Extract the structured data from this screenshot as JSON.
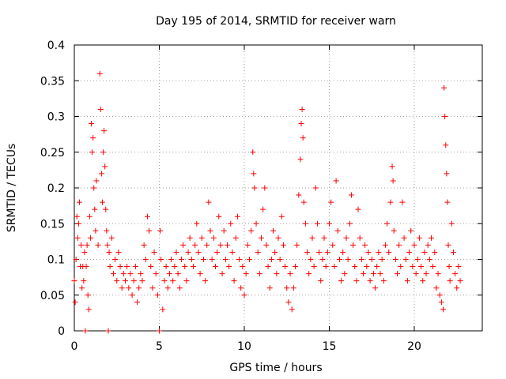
{
  "chart_data": {
    "type": "scatter",
    "title": "Day 195 of 2014, SRMTID for receiver warn",
    "xlabel": "GPS time / hours",
    "ylabel": "SRMTID / TECUs",
    "xlim": [
      0,
      24
    ],
    "ylim": [
      0,
      0.4
    ],
    "xticks": [
      0,
      5,
      10,
      15,
      20
    ],
    "xtick_labels": [
      "0",
      "5",
      "10",
      "15",
      "20"
    ],
    "yticks": [
      0,
      0.05,
      0.1,
      0.15,
      0.2,
      0.25,
      0.3,
      0.35,
      0.4
    ],
    "ytick_labels": [
      "0",
      "0.05",
      "0.1",
      "0.15",
      "0.2",
      "0.25",
      "0.3",
      "0.35",
      "0.4"
    ],
    "grid": true,
    "marker": "+",
    "color": "#ff0000",
    "series": [
      {
        "name": "SRMTID",
        "points": [
          [
            0.0,
            0.07
          ],
          [
            0.05,
            0.04
          ],
          [
            0.1,
            0.1
          ],
          [
            0.15,
            0.16
          ],
          [
            0.2,
            0.13
          ],
          [
            0.25,
            0.15
          ],
          [
            0.3,
            0.18
          ],
          [
            0.35,
            0.09
          ],
          [
            0.4,
            0.12
          ],
          [
            0.45,
            0.06
          ],
          [
            0.5,
            0.09
          ],
          [
            0.55,
            0.07
          ],
          [
            0.6,
            0.11
          ],
          [
            0.65,
            0.0
          ],
          [
            0.7,
            0.09
          ],
          [
            0.75,
            0.12
          ],
          [
            0.8,
            0.05
          ],
          [
            0.85,
            0.03
          ],
          [
            0.9,
            0.16
          ],
          [
            0.95,
            0.13
          ],
          [
            1.0,
            0.29
          ],
          [
            1.05,
            0.25
          ],
          [
            1.1,
            0.27
          ],
          [
            1.15,
            0.2
          ],
          [
            1.2,
            0.17
          ],
          [
            1.25,
            0.14
          ],
          [
            1.3,
            0.21
          ],
          [
            1.4,
            0.12
          ],
          [
            1.5,
            0.36
          ],
          [
            1.55,
            0.31
          ],
          [
            1.6,
            0.22
          ],
          [
            1.65,
            0.18
          ],
          [
            1.7,
            0.25
          ],
          [
            1.75,
            0.28
          ],
          [
            1.8,
            0.23
          ],
          [
            1.85,
            0.17
          ],
          [
            1.9,
            0.14
          ],
          [
            1.95,
            0.12
          ],
          [
            2.0,
            0.0
          ],
          [
            2.05,
            0.11
          ],
          [
            2.1,
            0.09
          ],
          [
            2.2,
            0.13
          ],
          [
            2.3,
            0.08
          ],
          [
            2.4,
            0.1
          ],
          [
            2.5,
            0.07
          ],
          [
            2.6,
            0.11
          ],
          [
            2.7,
            0.09
          ],
          [
            2.8,
            0.06
          ],
          [
            2.9,
            0.08
          ],
          [
            3.0,
            0.07
          ],
          [
            3.1,
            0.09
          ],
          [
            3.2,
            0.06
          ],
          [
            3.3,
            0.08
          ],
          [
            3.4,
            0.05
          ],
          [
            3.5,
            0.07
          ],
          [
            3.6,
            0.09
          ],
          [
            3.7,
            0.04
          ],
          [
            3.8,
            0.06
          ],
          [
            3.9,
            0.08
          ],
          [
            4.0,
            0.07
          ],
          [
            4.1,
            0.12
          ],
          [
            4.2,
            0.1
          ],
          [
            4.3,
            0.16
          ],
          [
            4.4,
            0.14
          ],
          [
            4.5,
            0.09
          ],
          [
            4.6,
            0.06
          ],
          [
            4.7,
            0.11
          ],
          [
            4.8,
            0.08
          ],
          [
            4.9,
            0.05
          ],
          [
            5.0,
            0.0
          ],
          [
            5.05,
            0.14
          ],
          [
            5.1,
            0.1
          ],
          [
            5.2,
            0.03
          ],
          [
            5.3,
            0.07
          ],
          [
            5.4,
            0.09
          ],
          [
            5.5,
            0.06
          ],
          [
            5.6,
            0.08
          ],
          [
            5.7,
            0.1
          ],
          [
            5.8,
            0.07
          ],
          [
            5.9,
            0.09
          ],
          [
            6.0,
            0.11
          ],
          [
            6.1,
            0.08
          ],
          [
            6.2,
            0.06
          ],
          [
            6.3,
            0.1
          ],
          [
            6.4,
            0.12
          ],
          [
            6.5,
            0.09
          ],
          [
            6.6,
            0.07
          ],
          [
            6.7,
            0.11
          ],
          [
            6.8,
            0.13
          ],
          [
            6.9,
            0.1
          ],
          [
            7.0,
            0.09
          ],
          [
            7.1,
            0.12
          ],
          [
            7.2,
            0.15
          ],
          [
            7.3,
            0.11
          ],
          [
            7.4,
            0.08
          ],
          [
            7.5,
            0.13
          ],
          [
            7.6,
            0.1
          ],
          [
            7.7,
            0.07
          ],
          [
            7.8,
            0.12
          ],
          [
            7.9,
            0.18
          ],
          [
            8.0,
            0.14
          ],
          [
            8.1,
            0.1
          ],
          [
            8.2,
            0.13
          ],
          [
            8.3,
            0.09
          ],
          [
            8.4,
            0.11
          ],
          [
            8.5,
            0.16
          ],
          [
            8.6,
            0.12
          ],
          [
            8.7,
            0.08
          ],
          [
            8.8,
            0.14
          ],
          [
            8.9,
            0.1
          ],
          [
            9.0,
            0.12
          ],
          [
            9.1,
            0.09
          ],
          [
            9.2,
            0.15
          ],
          [
            9.3,
            0.11
          ],
          [
            9.4,
            0.07
          ],
          [
            9.5,
            0.13
          ],
          [
            9.6,
            0.16
          ],
          [
            9.7,
            0.1
          ],
          [
            9.8,
            0.06
          ],
          [
            9.9,
            0.09
          ],
          [
            10.0,
            0.05
          ],
          [
            10.1,
            0.08
          ],
          [
            10.2,
            0.12
          ],
          [
            10.3,
            0.1
          ],
          [
            10.4,
            0.14
          ],
          [
            10.5,
            0.25
          ],
          [
            10.55,
            0.22
          ],
          [
            10.6,
            0.2
          ],
          [
            10.7,
            0.15
          ],
          [
            10.8,
            0.11
          ],
          [
            10.9,
            0.08
          ],
          [
            11.0,
            0.13
          ],
          [
            11.1,
            0.17
          ],
          [
            11.2,
            0.2
          ],
          [
            11.3,
            0.12
          ],
          [
            11.4,
            0.09
          ],
          [
            11.5,
            0.06
          ],
          [
            11.6,
            0.1
          ],
          [
            11.7,
            0.14
          ],
          [
            11.8,
            0.11
          ],
          [
            11.9,
            0.08
          ],
          [
            12.0,
            0.13
          ],
          [
            12.1,
            0.1
          ],
          [
            12.2,
            0.16
          ],
          [
            12.3,
            0.12
          ],
          [
            12.4,
            0.09
          ],
          [
            12.5,
            0.06
          ],
          [
            12.6,
            0.04
          ],
          [
            12.7,
            0.08
          ],
          [
            12.8,
            0.03
          ],
          [
            12.9,
            0.06
          ],
          [
            13.0,
            0.09
          ],
          [
            13.1,
            0.12
          ],
          [
            13.2,
            0.19
          ],
          [
            13.3,
            0.24
          ],
          [
            13.35,
            0.29
          ],
          [
            13.4,
            0.31
          ],
          [
            13.45,
            0.27
          ],
          [
            13.5,
            0.18
          ],
          [
            13.6,
            0.15
          ],
          [
            13.7,
            0.11
          ],
          [
            13.8,
            0.08
          ],
          [
            13.9,
            0.1
          ],
          [
            14.0,
            0.13
          ],
          [
            14.1,
            0.09
          ],
          [
            14.2,
            0.2
          ],
          [
            14.3,
            0.15
          ],
          [
            14.4,
            0.11
          ],
          [
            14.5,
            0.07
          ],
          [
            14.6,
            0.1
          ],
          [
            14.7,
            0.13
          ],
          [
            14.8,
            0.09
          ],
          [
            14.9,
            0.11
          ],
          [
            15.0,
            0.15
          ],
          [
            15.1,
            0.18
          ],
          [
            15.2,
            0.12
          ],
          [
            15.3,
            0.09
          ],
          [
            15.4,
            0.21
          ],
          [
            15.5,
            0.14
          ],
          [
            15.6,
            0.1
          ],
          [
            15.7,
            0.07
          ],
          [
            15.8,
            0.11
          ],
          [
            15.9,
            0.08
          ],
          [
            16.0,
            0.13
          ],
          [
            16.1,
            0.1
          ],
          [
            16.2,
            0.15
          ],
          [
            16.3,
            0.19
          ],
          [
            16.4,
            0.12
          ],
          [
            16.5,
            0.09
          ],
          [
            16.6,
            0.07
          ],
          [
            16.7,
            0.17
          ],
          [
            16.8,
            0.13
          ],
          [
            16.9,
            0.1
          ],
          [
            17.0,
            0.08
          ],
          [
            17.1,
            0.12
          ],
          [
            17.2,
            0.09
          ],
          [
            17.3,
            0.11
          ],
          [
            17.4,
            0.07
          ],
          [
            17.5,
            0.1
          ],
          [
            17.6,
            0.08
          ],
          [
            17.7,
            0.06
          ],
          [
            17.8,
            0.09
          ],
          [
            17.9,
            0.11
          ],
          [
            18.0,
            0.08
          ],
          [
            18.1,
            0.1
          ],
          [
            18.2,
            0.07
          ],
          [
            18.3,
            0.12
          ],
          [
            18.4,
            0.15
          ],
          [
            18.5,
            0.11
          ],
          [
            18.6,
            0.18
          ],
          [
            18.7,
            0.23
          ],
          [
            18.75,
            0.21
          ],
          [
            18.8,
            0.14
          ],
          [
            18.9,
            0.1
          ],
          [
            19.0,
            0.08
          ],
          [
            19.1,
            0.12
          ],
          [
            19.2,
            0.09
          ],
          [
            19.3,
            0.18
          ],
          [
            19.4,
            0.13
          ],
          [
            19.5,
            0.1
          ],
          [
            19.6,
            0.07
          ],
          [
            19.7,
            0.11
          ],
          [
            19.8,
            0.14
          ],
          [
            19.9,
            0.09
          ],
          [
            20.0,
            0.12
          ],
          [
            20.1,
            0.08
          ],
          [
            20.2,
            0.1
          ],
          [
            20.3,
            0.13
          ],
          [
            20.4,
            0.09
          ],
          [
            20.5,
            0.07
          ],
          [
            20.6,
            0.11
          ],
          [
            20.7,
            0.08
          ],
          [
            20.8,
            0.12
          ],
          [
            20.9,
            0.1
          ],
          [
            21.0,
            0.13
          ],
          [
            21.1,
            0.09
          ],
          [
            21.2,
            0.11
          ],
          [
            21.3,
            0.06
          ],
          [
            21.4,
            0.08
          ],
          [
            21.5,
            0.05
          ],
          [
            21.6,
            0.04
          ],
          [
            21.7,
            0.03
          ],
          [
            21.75,
            0.34
          ],
          [
            21.8,
            0.3
          ],
          [
            21.85,
            0.26
          ],
          [
            21.9,
            0.22
          ],
          [
            21.95,
            0.18
          ],
          [
            22.0,
            0.12
          ],
          [
            22.05,
            0.09
          ],
          [
            22.1,
            0.07
          ],
          [
            22.2,
            0.15
          ],
          [
            22.3,
            0.11
          ],
          [
            22.4,
            0.08
          ],
          [
            22.5,
            0.06
          ],
          [
            22.6,
            0.09
          ],
          [
            22.7,
            0.07
          ]
        ]
      }
    ]
  }
}
